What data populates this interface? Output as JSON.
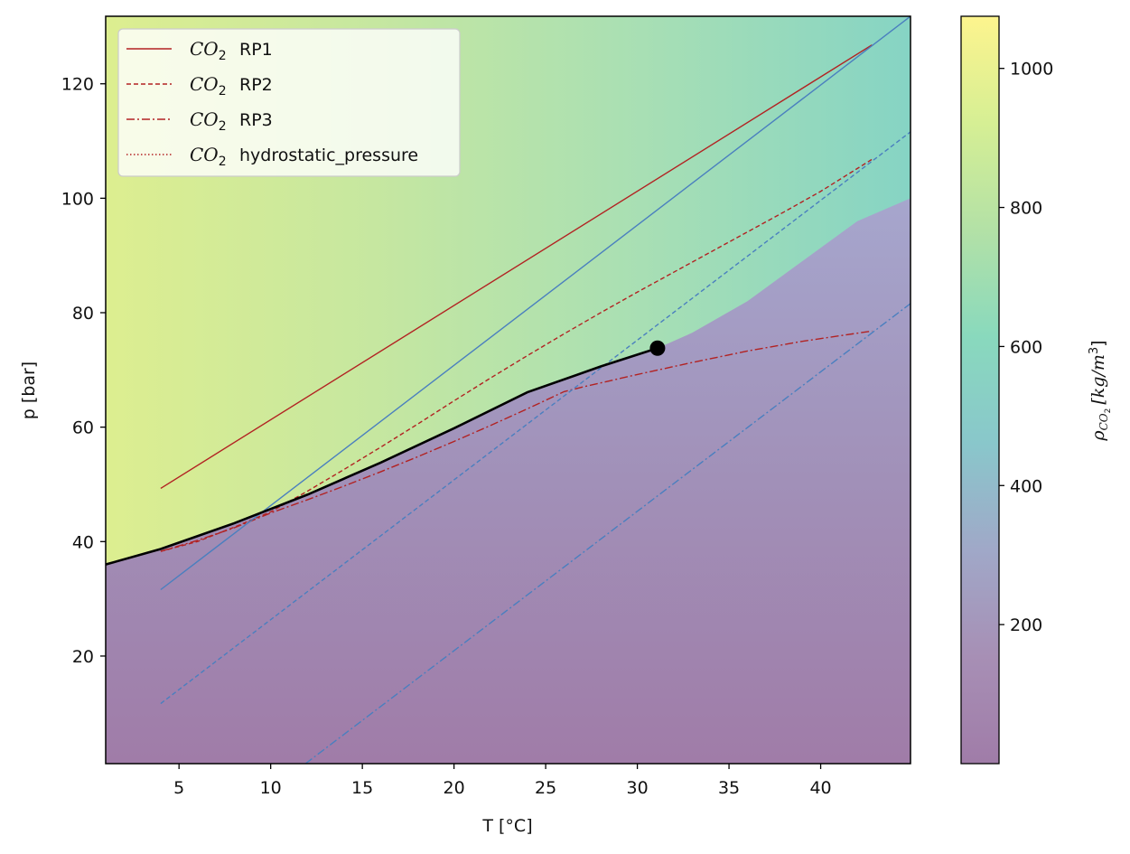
{
  "chart_data": {
    "type": "line",
    "xlabel": "T [°C]",
    "ylabel": "p [bar]",
    "xlim": [
      1,
      44.9
    ],
    "ylim": [
      1.2,
      131.8
    ],
    "x_ticks": [
      5,
      10,
      15,
      20,
      25,
      30,
      35,
      40
    ],
    "y_ticks": [
      20,
      40,
      60,
      80,
      100,
      120
    ],
    "grid": false,
    "legend_position": "top-left",
    "colorbar": {
      "label_symbol": "ρ",
      "label_subscript": "CO",
      "label_subscript2": "2",
      "label_units": "[kg/m",
      "label_units_sup": "3",
      "label_units_end": "]",
      "ticks": [
        200,
        400,
        600,
        800,
        1000
      ],
      "range": [
        0,
        1075
      ],
      "colormap": [
        "#a07ca8",
        "#a78fb5",
        "#a0a8c8",
        "#89c7cb",
        "#89d9bd",
        "#b3e1a6",
        "#d6ef94",
        "#fdf48e"
      ]
    },
    "background": {
      "description_shown": "density field shaded behind lines",
      "liquid_colors_left_to_right": [
        "#ddee90",
        "#c6e7a0",
        "#a8dfb4",
        "#86d4c4"
      ],
      "gas_colors_bottom_to_top": [
        "#a07ca8",
        "#a190b8",
        "#a6a6cd"
      ]
    },
    "series": [
      {
        "name": "RP1",
        "legend_prefix": "CO",
        "legend_sub": "2",
        "color": "#b22222",
        "dash": "solid",
        "x": [
          4,
          42.8
        ],
        "y": [
          49.3,
          126.8
        ]
      },
      {
        "name": "RP2",
        "legend_prefix": "CO",
        "legend_sub": "2",
        "color": "#b22222",
        "dash": "dashed",
        "x": [
          4,
          6,
          8,
          10,
          12,
          14,
          16,
          18,
          20,
          22,
          24,
          26,
          28,
          30,
          32,
          34,
          36,
          38,
          40,
          42.8
        ],
        "y": [
          38.3,
          40.0,
          42.5,
          45.2,
          48.8,
          52.6,
          56.5,
          60.5,
          64.6,
          68.6,
          72.5,
          76.3,
          80.0,
          83.6,
          87.1,
          90.6,
          94.1,
          97.6,
          101.2,
          106.8
        ]
      },
      {
        "name": "RP3",
        "legend_prefix": "CO",
        "legend_sub": "2",
        "color": "#b22222",
        "dash": "dashdot",
        "x": [
          4,
          6,
          8,
          10,
          12,
          14,
          16,
          18,
          20,
          22,
          24,
          26,
          27,
          30,
          33,
          36,
          39,
          42.8
        ],
        "y": [
          38.3,
          40.2,
          42.4,
          45.0,
          47.3,
          49.7,
          52.2,
          54.8,
          57.5,
          60.3,
          63.2,
          66.2,
          67.0,
          69.2,
          71.3,
          73.3,
          75.0,
          76.8
        ]
      },
      {
        "name": "hydrostatic_pressure",
        "legend_prefix": "CO",
        "legend_sub": "2",
        "color": "#b22222",
        "dash": "dotted",
        "x": [],
        "y": []
      },
      {
        "color": "#4a7fbf",
        "dash": "solid",
        "x": [
          4,
          44.9
        ],
        "y": [
          31.6,
          131.8
        ]
      },
      {
        "color": "#4a7fbf",
        "dash": "dashed",
        "x": [
          4,
          44.9
        ],
        "y": [
          11.7,
          111.6
        ]
      },
      {
        "color": "#4a7fbf",
        "dash": "dashdot",
        "x": [
          11.9,
          44.9
        ],
        "y": [
          1.2,
          81.6
        ]
      },
      {
        "color": "#000000",
        "dash": "solid",
        "x": [
          1,
          4,
          8,
          12,
          16,
          20,
          24,
          28,
          31.1
        ],
        "y": [
          36.0,
          38.7,
          43.2,
          48.2,
          53.8,
          59.8,
          66.1,
          70.6,
          73.8
        ]
      }
    ],
    "critical_point": {
      "x": 31.1,
      "y": 73.8,
      "color": "#000000"
    }
  }
}
